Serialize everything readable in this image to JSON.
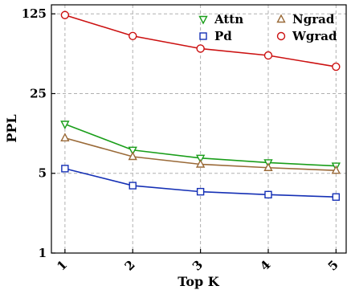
{
  "chart_data": {
    "type": "line",
    "xlabel": "Top K",
    "ylabel": "PPL",
    "yscale": "log",
    "x": [
      1,
      2,
      3,
      4,
      5
    ],
    "x_tick_labels": [
      "1",
      "2",
      "3",
      "4",
      "5"
    ],
    "y_ticks": [
      1,
      5,
      25,
      125
    ],
    "y_tick_labels": [
      "1",
      "5",
      "25",
      "125"
    ],
    "ylim": [
      1,
      150
    ],
    "grid": true,
    "legend_position": "top-right",
    "series": [
      {
        "name": "Attn",
        "color": "#1a9e1a",
        "marker": "triangle-down",
        "values": [
          13.5,
          8.0,
          6.8,
          6.2,
          5.8
        ]
      },
      {
        "name": "Pd",
        "color": "#1530b5",
        "marker": "square",
        "values": [
          5.5,
          3.9,
          3.45,
          3.25,
          3.1
        ]
      },
      {
        "name": "Ngrad",
        "color": "#9a6a38",
        "marker": "triangle-up",
        "values": [
          10.2,
          7.0,
          6.0,
          5.6,
          5.3
        ]
      },
      {
        "name": "Wgrad",
        "color": "#cc1111",
        "marker": "circle",
        "values": [
          122,
          80,
          62,
          54,
          43
        ]
      }
    ]
  }
}
